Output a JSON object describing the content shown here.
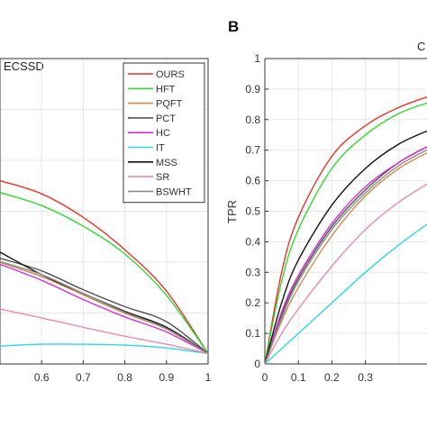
{
  "panels": {
    "a": {
      "title": "ECSSD"
    },
    "b": {
      "letter": "B",
      "title": "C"
    }
  },
  "chart_data": [
    {
      "type": "line",
      "title": "ECSSD",
      "xlabel": "",
      "ylabel": "",
      "xlim": [
        0.5,
        1.0
      ],
      "ylim": [
        0.35,
        1.0
      ],
      "xticks": [
        "0.6",
        "0.7",
        "0.8",
        "0.9",
        "1"
      ],
      "grid": true,
      "legend_position": "top-right",
      "legend": [
        "OURS",
        "HFT",
        "PQFT",
        "PCT",
        "HC",
        "IT",
        "MSS",
        "SR",
        "BSWHT"
      ],
      "series": [
        {
          "name": "OURS",
          "color": "#e8332c",
          "x": [
            0.5,
            0.6,
            0.7,
            0.8,
            0.9,
            1.0
          ],
          "y": [
            0.74,
            0.712,
            0.662,
            0.593,
            0.505,
            0.372
          ]
        },
        {
          "name": "HFT",
          "color": "#33d633",
          "x": [
            0.5,
            0.6,
            0.7,
            0.8,
            0.9,
            1.0
          ],
          "y": [
            0.715,
            0.687,
            0.643,
            0.584,
            0.496,
            0.372
          ]
        },
        {
          "name": "PQFT",
          "color": "#d08a4f",
          "x": [
            0.5,
            0.6,
            0.7,
            0.8,
            0.9,
            1.0
          ],
          "y": [
            0.566,
            0.536,
            0.497,
            0.458,
            0.424,
            0.372
          ]
        },
        {
          "name": "PCT",
          "color": "#505050",
          "x": [
            0.5,
            0.6,
            0.7,
            0.8,
            0.9,
            1.0
          ],
          "y": [
            0.575,
            0.548,
            0.508,
            0.472,
            0.44,
            0.372
          ]
        },
        {
          "name": "HC",
          "color": "#d62fd6",
          "x": [
            0.5,
            0.6,
            0.7,
            0.8,
            0.9,
            1.0
          ],
          "y": [
            0.562,
            0.528,
            0.487,
            0.45,
            0.418,
            0.372
          ]
        },
        {
          "name": "IT",
          "color": "#2fd6e0",
          "x": [
            0.5,
            0.6,
            0.7,
            0.8,
            0.9,
            1.0
          ],
          "y": [
            0.388,
            0.392,
            0.392,
            0.39,
            0.384,
            0.372
          ]
        },
        {
          "name": "MSS",
          "color": "#111111",
          "x": [
            0.5,
            0.6,
            0.7,
            0.8,
            0.9,
            1.0
          ],
          "y": [
            0.588,
            0.54,
            0.5,
            0.462,
            0.428,
            0.372
          ]
        },
        {
          "name": "SR",
          "color": "#e48cb2",
          "x": [
            0.5,
            0.6,
            0.7,
            0.8,
            0.9,
            1.0
          ],
          "y": [
            0.467,
            0.448,
            0.428,
            0.409,
            0.392,
            0.372
          ]
        },
        {
          "name": "BSWHT",
          "color": "#8c8c8c",
          "x": [
            0.5,
            0.6,
            0.7,
            0.8,
            0.9,
            1.0
          ],
          "y": [
            0.568,
            0.54,
            0.5,
            0.46,
            0.425,
            0.372
          ]
        }
      ]
    },
    {
      "type": "line",
      "title": "C",
      "xlabel": "",
      "ylabel": "TPR",
      "xlim": [
        0,
        0.5
      ],
      "ylim": [
        0,
        1
      ],
      "xticks": [
        "0",
        "0.1",
        "0.2",
        "0.3"
      ],
      "yticks": [
        "0",
        "0.1",
        "0.2",
        "0.3",
        "0.4",
        "0.5",
        "0.6",
        "0.7",
        "0.8",
        "0.9",
        "1"
      ],
      "grid": true,
      "series": [
        {
          "name": "OURS",
          "color": "#e8332c",
          "x": [
            0,
            0.05,
            0.1,
            0.2,
            0.3,
            0.4,
            0.5
          ],
          "y": [
            0,
            0.3,
            0.48,
            0.68,
            0.78,
            0.84,
            0.88
          ]
        },
        {
          "name": "HFT",
          "color": "#33d633",
          "x": [
            0,
            0.05,
            0.1,
            0.2,
            0.3,
            0.4,
            0.5
          ],
          "y": [
            0,
            0.27,
            0.44,
            0.64,
            0.75,
            0.82,
            0.86
          ]
        },
        {
          "name": "PQFT",
          "color": "#d08a4f",
          "x": [
            0,
            0.05,
            0.1,
            0.2,
            0.3,
            0.4,
            0.5
          ],
          "y": [
            0,
            0.14,
            0.25,
            0.42,
            0.55,
            0.64,
            0.7
          ]
        },
        {
          "name": "PCT",
          "color": "#505050",
          "x": [
            0,
            0.05,
            0.1,
            0.2,
            0.3,
            0.4,
            0.5
          ],
          "y": [
            0,
            0.16,
            0.28,
            0.45,
            0.57,
            0.66,
            0.72
          ]
        },
        {
          "name": "HC",
          "color": "#d62fd6",
          "x": [
            0,
            0.05,
            0.1,
            0.2,
            0.3,
            0.4,
            0.5
          ],
          "y": [
            0,
            0.17,
            0.29,
            0.46,
            0.58,
            0.66,
            0.72
          ]
        },
        {
          "name": "IT",
          "color": "#2fd6e0",
          "x": [
            0,
            0.05,
            0.1,
            0.2,
            0.3,
            0.4,
            0.5
          ],
          "y": [
            0,
            0.05,
            0.1,
            0.2,
            0.3,
            0.39,
            0.47
          ]
        },
        {
          "name": "MSS",
          "color": "#111111",
          "x": [
            0,
            0.05,
            0.1,
            0.2,
            0.3,
            0.4,
            0.5
          ],
          "y": [
            0,
            0.2,
            0.34,
            0.52,
            0.64,
            0.72,
            0.77
          ]
        },
        {
          "name": "SR",
          "color": "#e48cb2",
          "x": [
            0,
            0.05,
            0.1,
            0.2,
            0.3,
            0.4,
            0.5
          ],
          "y": [
            0,
            0.1,
            0.18,
            0.32,
            0.44,
            0.53,
            0.6
          ]
        },
        {
          "name": "BSWHT",
          "color": "#8c8c8c",
          "x": [
            0,
            0.05,
            0.1,
            0.2,
            0.3,
            0.4,
            0.5
          ],
          "y": [
            0,
            0.15,
            0.27,
            0.44,
            0.56,
            0.65,
            0.71
          ]
        }
      ]
    }
  ]
}
